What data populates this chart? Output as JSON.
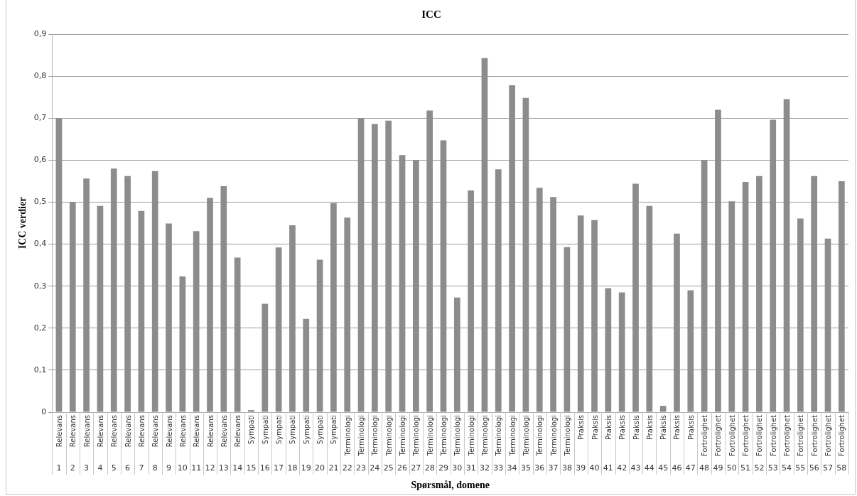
{
  "chart_data": {
    "type": "bar",
    "title": "ICC",
    "xlabel": "Spørsmål, domene",
    "ylabel": "ICC verdier",
    "categories": [
      "Relevans 1",
      "Relevans 2",
      "Relevans 3",
      "Relevans 4",
      "Relevans 5",
      "Relevans 6",
      "Relevans 7",
      "Relevans 8",
      "Relevans 9",
      "Relevans 10",
      "Relevans 11",
      "Relevans 12",
      "Relevans 13",
      "Relevans 14",
      "Sympati 15",
      "Sympati 16",
      "Sympati 17",
      "Sympati 18",
      "Sympati 19",
      "Sympati 20",
      "Sympati 21",
      "Terminologi 22",
      "Terminologi 23",
      "Terminologi 24",
      "Terminologi 25",
      "Terminologi 26",
      "Terminologi 27",
      "Terminologi 28",
      "Terminologi 29",
      "Terminologi 30",
      "Terminologi 31",
      "Terminologi 32",
      "Terminologi 33",
      "Terminologi 34",
      "Terminologi 35",
      "Terminologi 36",
      "Terminologi 37",
      "Terminologi 38",
      "Praksis 39",
      "Praksis 40",
      "Praksis 41",
      "Praksis 42",
      "Praksis 43",
      "Praksis 44",
      "Praksis 45",
      "Praksis 46",
      "Praksis 47",
      "Fortrolighet 48",
      "Fortrolighet 49",
      "Fortrolighet 50",
      "Fortrolighet 51",
      "Fortrolighet 52",
      "Fortrolighet 53",
      "Fortrolighet 54",
      "Fortrolighet 55",
      "Fortrolighet 56",
      "Fortrolighet 57",
      "Fortrolighet 58"
    ],
    "values": [
      0.7,
      0.5,
      0.556,
      0.491,
      0.58,
      0.562,
      0.479,
      0.574,
      0.449,
      0.323,
      0.431,
      0.51,
      0.538,
      0.368,
      0.005,
      0.258,
      0.392,
      0.445,
      0.222,
      0.363,
      0.498,
      0.463,
      0.7,
      0.686,
      0.694,
      0.612,
      0.6,
      0.718,
      0.647,
      0.273,
      0.528,
      0.843,
      0.578,
      0.778,
      0.748,
      0.534,
      0.512,
      0.393,
      0.468,
      0.457,
      0.295,
      0.285,
      0.544,
      0.491,
      0.015,
      0.425,
      0.29,
      0.6,
      0.72,
      0.502,
      0.548,
      0.562,
      0.696,
      0.745,
      0.461,
      0.562,
      0.413,
      0.55
    ],
    "color": "#8c8c8c",
    "ylim": [
      0,
      0.9
    ],
    "yticks": [
      0,
      {
        "value": 0.1,
        "label": "0,1"
      },
      {
        "value": 0.2,
        "label": "0,2"
      },
      {
        "value": 0.3,
        "label": "0,3"
      },
      {
        "value": 0.4,
        "label": "0,4"
      },
      {
        "value": 0.5,
        "label": "0,5"
      },
      {
        "value": 0.6,
        "label": "0,6"
      },
      {
        "value": 0.7,
        "label": "0,7"
      },
      {
        "value": 0.8,
        "label": "0,8"
      },
      {
        "value": 0.9,
        "label": "0,9"
      }
    ],
    "grid": "y",
    "legend": false
  }
}
